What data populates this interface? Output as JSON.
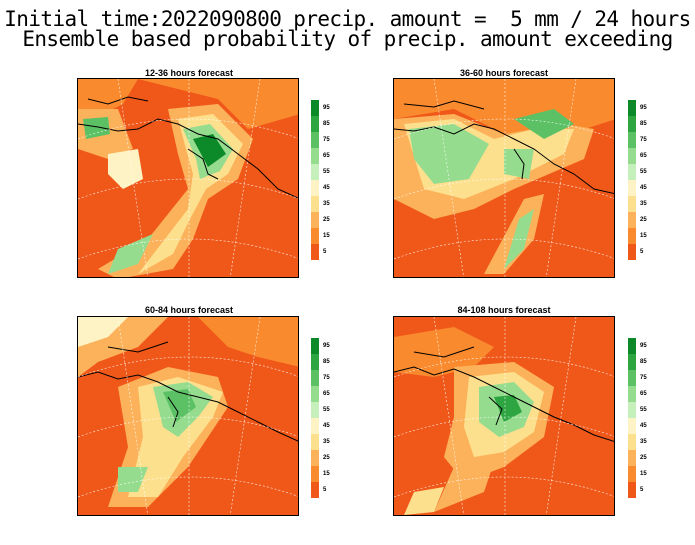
{
  "title": {
    "line1": "Initial time:2022090800 precip. amount =  5 mm / 24 hours",
    "line2": "Ensemble based probability of precip. amount exceeding"
  },
  "panels": [
    {
      "title": "12-36 hours forecast"
    },
    {
      "title": "36-60 hours forecast"
    },
    {
      "title": "60-84 hours forecast"
    },
    {
      "title": "84-108 hours forecast"
    }
  ],
  "colorbar": {
    "labels": [
      "95",
      "85",
      "75",
      "65",
      "55",
      "45",
      "35",
      "25",
      "15",
      "5"
    ],
    "colors": [
      "#0c8a2a",
      "#2da540",
      "#5cc165",
      "#96dc8f",
      "#c6f0bb",
      "#fdf3c4",
      "#fde08e",
      "#fcb25a",
      "#f98a2e",
      "#f0581a"
    ]
  },
  "map": {
    "background_color": "#f0581a",
    "land_color": "#000000"
  }
}
